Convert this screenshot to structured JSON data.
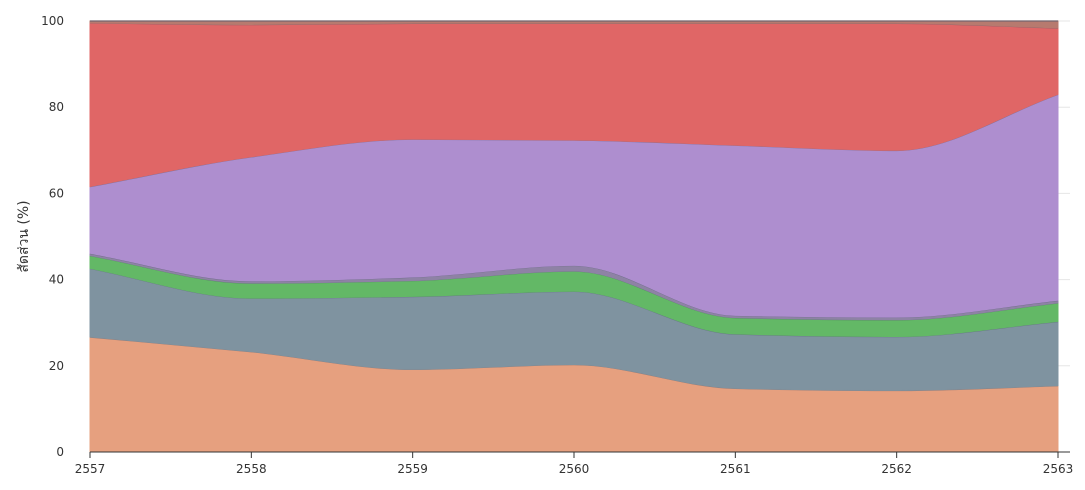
{
  "chart_data": {
    "type": "area",
    "stacked": true,
    "normalized": true,
    "x": [
      "2557",
      "2558",
      "2559",
      "2560",
      "2561",
      "2562",
      "2563"
    ],
    "ylabel": "สัดส่วน (%)",
    "xlabel": "",
    "ylim": [
      0,
      100
    ],
    "yticks": [
      "0",
      "20",
      "40",
      "60",
      "80",
      "100"
    ],
    "grid": true,
    "series": [
      {
        "color": "#e6a07f",
        "values": [
          26.7,
          23.3,
          19.2,
          20.3,
          14.8,
          14.3,
          15.4
        ]
      },
      {
        "color": "#7f93a0",
        "values": [
          15.9,
          12.4,
          16.9,
          17.0,
          12.6,
          12.5,
          14.9
        ]
      },
      {
        "color": "#63b866",
        "values": [
          3.0,
          3.5,
          3.7,
          4.7,
          3.8,
          3.9,
          4.3
        ]
      },
      {
        "color": "#8e82a5",
        "values": [
          0.5,
          0.5,
          0.8,
          1.3,
          0.5,
          0.6,
          0.6
        ]
      },
      {
        "color": "#ae8ecf",
        "values": [
          15.5,
          28.8,
          32.0,
          29.1,
          39.5,
          38.7,
          47.8
        ]
      },
      {
        "color": "#e06666",
        "values": [
          38.0,
          30.7,
          26.9,
          27.1,
          28.3,
          29.5,
          15.4
        ]
      },
      {
        "color": "#b77a6f",
        "values": [
          0.4,
          0.8,
          0.5,
          0.5,
          0.5,
          0.5,
          1.6
        ]
      }
    ]
  }
}
